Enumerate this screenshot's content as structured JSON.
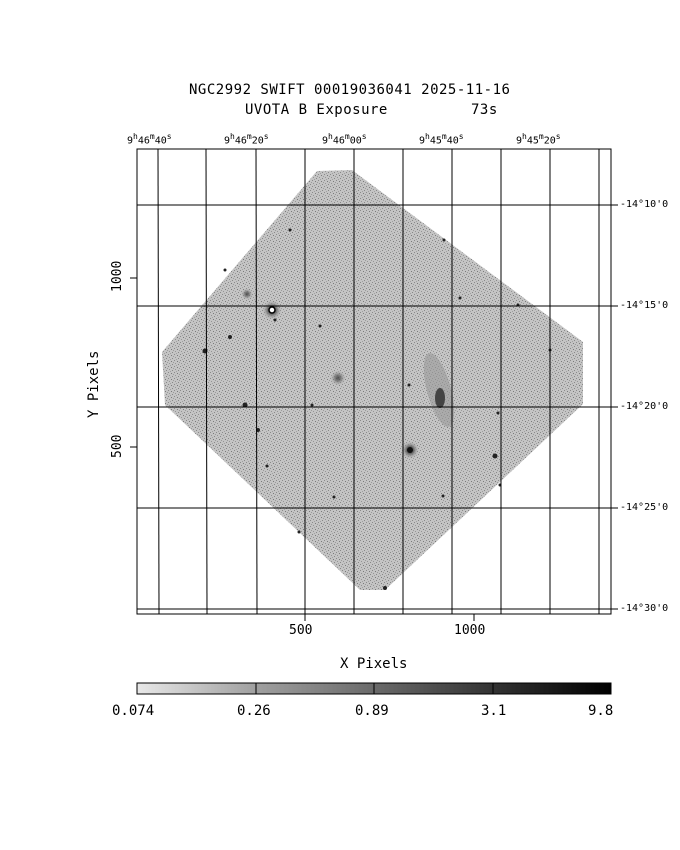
{
  "header": {
    "title_line1": "NGC2992 SWIFT 00019036041 2025-11-16",
    "title_line2_left": "UVOTA B Exposure",
    "title_line2_right": "73s"
  },
  "axes": {
    "xlabel": "X Pixels",
    "ylabel": "Y Pixels",
    "x_ticks": [
      "500",
      "1000"
    ],
    "y_ticks": [
      "1000",
      "500"
    ]
  },
  "ra_ticks": [
    {
      "h": "9",
      "m": "46",
      "s": "40"
    },
    {
      "h": "9",
      "m": "46",
      "s": "20"
    },
    {
      "h": "9",
      "m": "46",
      "s": "00"
    },
    {
      "h": "9",
      "m": "45",
      "s": "40"
    },
    {
      "h": "9",
      "m": "45",
      "s": "20"
    }
  ],
  "dec_ticks": [
    "-14°10'0",
    "-14°15'0",
    "-14°20'0",
    "-14°25'0",
    "-14°30'0"
  ],
  "colorbar": {
    "labels": [
      "0.074",
      "0.26",
      "0.89",
      "3.1",
      "9.8"
    ]
  },
  "colors": {
    "background": "#ffffff",
    "frame": "#000000",
    "image_field": "#a8a8a8"
  }
}
